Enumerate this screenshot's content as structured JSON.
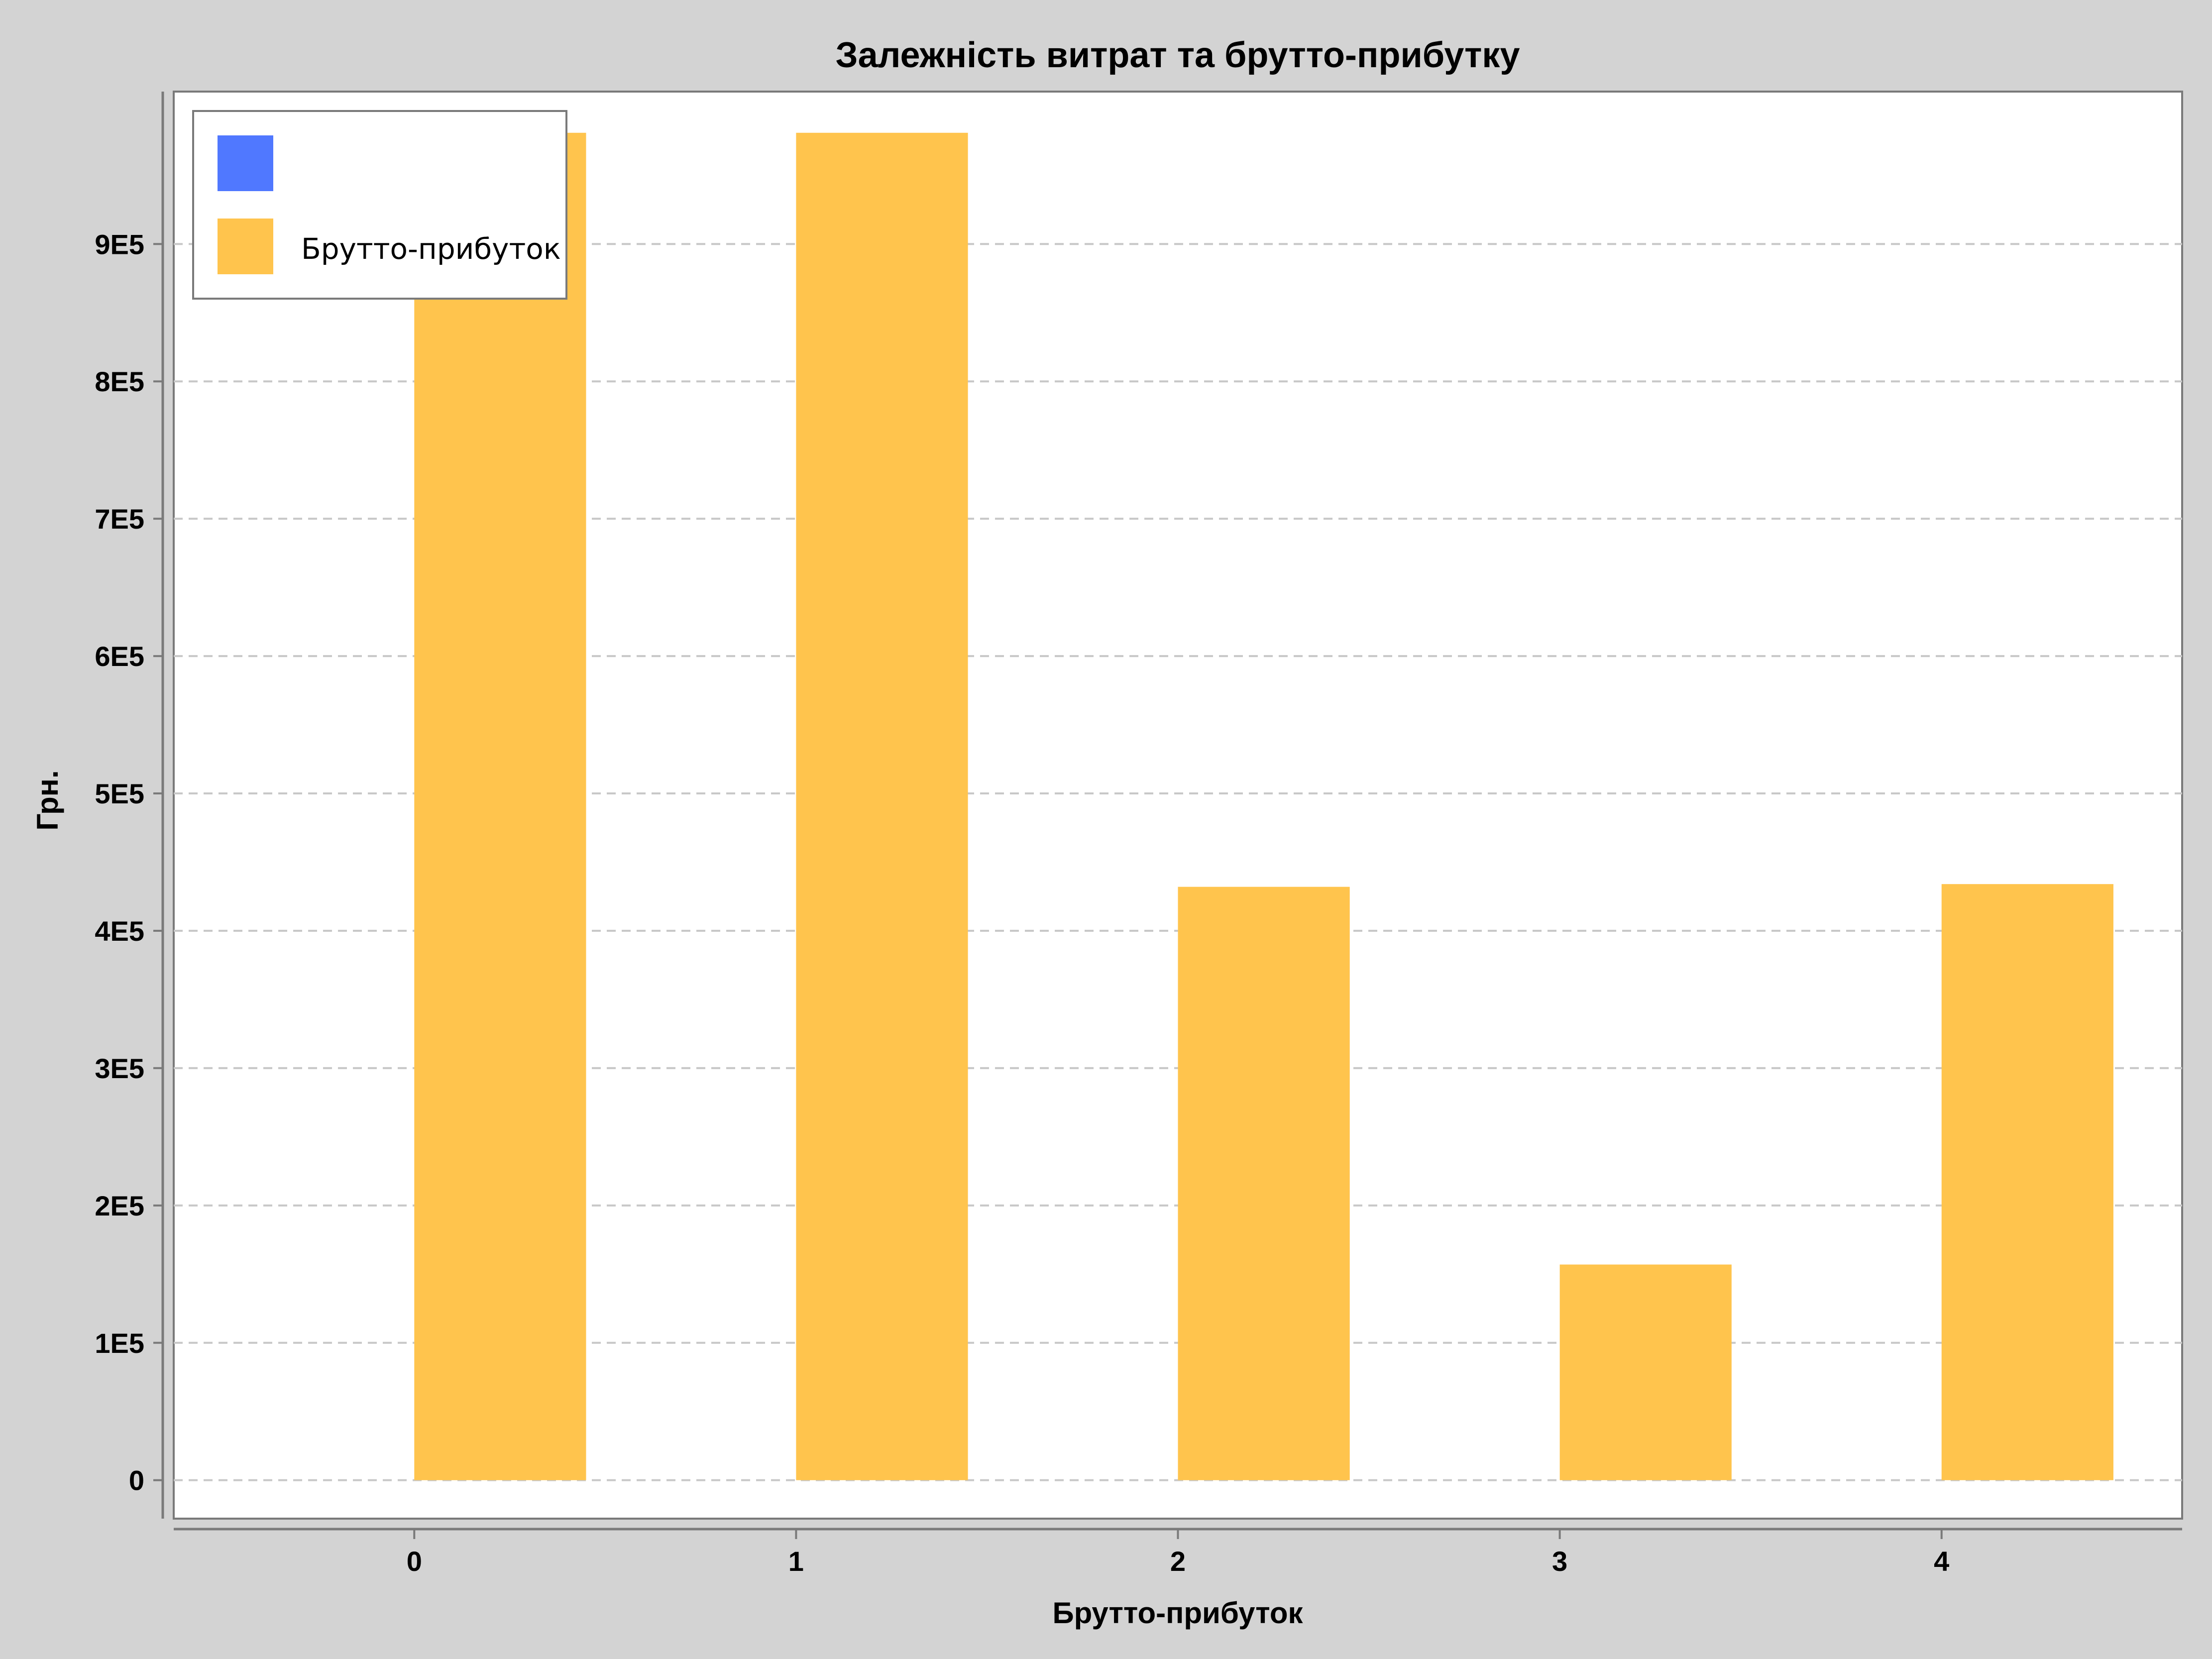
{
  "chart_data": {
    "type": "bar",
    "title": "Залежність витрат та брутто-прибутку",
    "xlabel": "Брутто-прибуток",
    "ylabel": "Грн.",
    "categories": [
      "0",
      "1",
      "2",
      "3",
      "4"
    ],
    "series": [
      {
        "name": "",
        "color": "#5078ff",
        "values": [
          null,
          null,
          null,
          null,
          null
        ]
      },
      {
        "name": "Брутто-прибуток",
        "color": "#ffc44d",
        "values": [
          981000,
          981000,
          432000,
          157000,
          434000
        ]
      }
    ],
    "xlim": [
      -0.63,
      4.63
    ],
    "ylim": [
      -28000,
      1011000
    ],
    "yticks": [
      {
        "value": 0,
        "label": "0"
      },
      {
        "value": 100000,
        "label": "1E5"
      },
      {
        "value": 200000,
        "label": "2E5"
      },
      {
        "value": 300000,
        "label": "3E5"
      },
      {
        "value": 400000,
        "label": "4E5"
      },
      {
        "value": 500000,
        "label": "5E5"
      },
      {
        "value": 600000,
        "label": "6E5"
      },
      {
        "value": 700000,
        "label": "7E5"
      },
      {
        "value": 800000,
        "label": "8E5"
      },
      {
        "value": 900000,
        "label": "9E5"
      }
    ],
    "grid": true,
    "legend_position": "top-left",
    "background": "#d3d3d3",
    "plot_background": "#ffffff",
    "grid_color": "#c8c8c8"
  }
}
